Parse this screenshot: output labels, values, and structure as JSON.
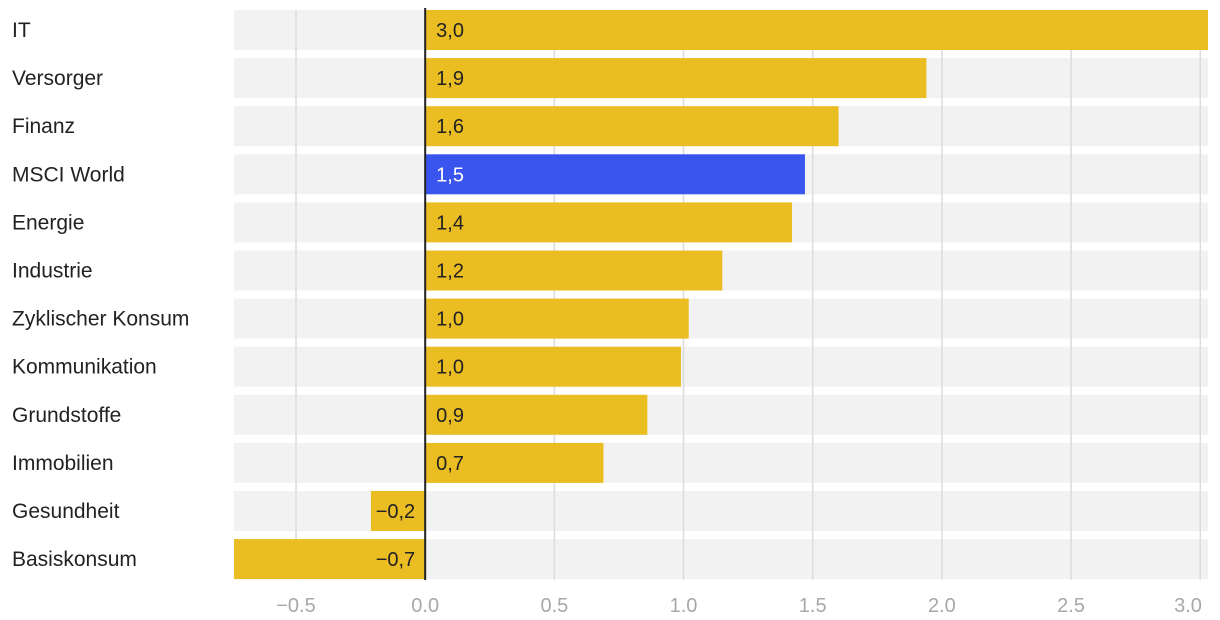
{
  "chart_data": {
    "type": "bar",
    "orientation": "horizontal",
    "title": "",
    "xlabel": "",
    "ylabel": "",
    "categories": [
      "IT",
      "Versorger",
      "Finanz",
      "MSCI World",
      "Energie",
      "Industrie",
      "Zyklischer Konsum",
      "Kommunikation",
      "Grundstoffe",
      "Immobilien",
      "Gesundheit",
      "Basiskonsum"
    ],
    "values": [
      3.03,
      1.94,
      1.6,
      1.47,
      1.42,
      1.15,
      1.02,
      0.99,
      0.86,
      0.69,
      -0.21,
      -0.74
    ],
    "value_labels": [
      "3,0",
      "1,9",
      "1,6",
      "1,5",
      "1,4",
      "1,2",
      "1,0",
      "1,0",
      "0,9",
      "0,7",
      "−0,2",
      "−0,7"
    ],
    "highlight": "MSCI World",
    "xlim": [
      -0.74,
      3.03
    ],
    "ticks": [
      -0.5,
      0.0,
      0.5,
      1.0,
      1.5,
      2.0,
      2.5,
      3.0
    ],
    "tick_labels": [
      "−0.5",
      "0.0",
      "0.5",
      "1.0",
      "1.5",
      "2.0",
      "2.5",
      "3.0"
    ],
    "grid": true,
    "legend": "none",
    "colors": {
      "bar": "#eabd22",
      "highlight": "#3a55ee",
      "row_band": "#f2f2f2",
      "grid": "#dcdcdc",
      "zero_line": "#222222",
      "label_dark": "#222222",
      "label_light": "#ffffff",
      "tick_text": "#a8a8a8"
    }
  }
}
